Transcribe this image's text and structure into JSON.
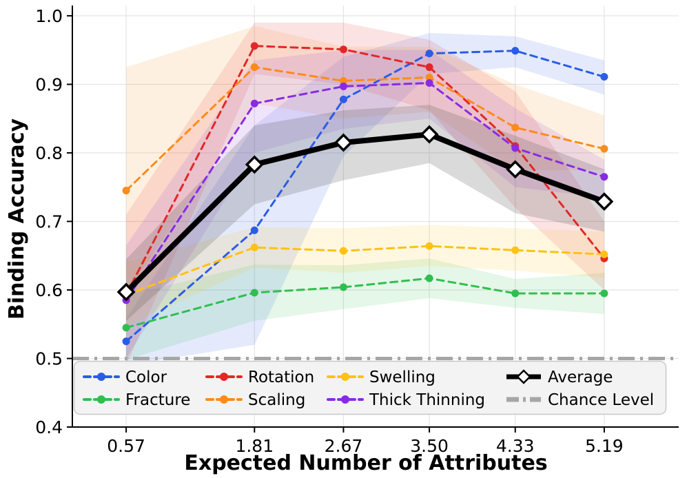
{
  "figure": {
    "background": "#ffffff"
  },
  "chart_data": {
    "type": "line",
    "title": "",
    "xlabel": "Expected Number of Attributes",
    "ylabel": "Binding Accuracy",
    "x": [
      0.57,
      1.81,
      2.67,
      3.5,
      4.33,
      5.19
    ],
    "x_tick_labels": [
      "0.57",
      "1.81",
      "2.67",
      "3.50",
      "4.33",
      "5.19"
    ],
    "y_ticks": [
      0.4,
      0.5,
      0.6,
      0.7,
      0.8,
      0.9,
      1.0
    ],
    "y_tick_labels": [
      "0.4",
      "0.5",
      "0.6",
      "0.7",
      "0.8",
      "0.9",
      "1.0"
    ],
    "xlim": [
      0.05,
      5.91
    ],
    "ylim": [
      0.4,
      1.015
    ],
    "grid": true,
    "colors": {
      "grid": "#e3e3e3",
      "spine": "#000000",
      "legend_bg": "#f2f2f2",
      "legend_border": "#c8c8c8"
    },
    "series": [
      {
        "name": "Color",
        "color": "#2b5ce6",
        "style": "dashed",
        "marker": "circle",
        "values": [
          0.525,
          0.687,
          0.878,
          0.945,
          0.949,
          0.911
        ],
        "band_lo": [
          0.49,
          0.52,
          0.795,
          0.915,
          0.925,
          0.885
        ],
        "band_hi": [
          0.558,
          0.84,
          0.94,
          0.975,
          0.97,
          0.935
        ]
      },
      {
        "name": "Fracture",
        "color": "#2fbf4f",
        "style": "dashed",
        "marker": "circle",
        "values": [
          0.545,
          0.596,
          0.604,
          0.617,
          0.595,
          0.595
        ],
        "band_lo": [
          0.498,
          0.555,
          0.572,
          0.588,
          0.574,
          0.565
        ],
        "band_hi": [
          0.592,
          0.637,
          0.636,
          0.646,
          0.616,
          0.625
        ]
      },
      {
        "name": "Rotation",
        "color": "#e32727",
        "style": "dashed",
        "marker": "circle",
        "values": [
          0.593,
          0.956,
          0.951,
          0.925,
          0.81,
          0.646
        ],
        "band_lo": [
          0.49,
          0.915,
          0.9,
          0.862,
          0.72,
          0.6
        ],
        "band_hi": [
          0.71,
          0.99,
          0.99,
          0.965,
          0.89,
          0.7
        ]
      },
      {
        "name": "Scaling",
        "color": "#fb8b1b",
        "style": "dashed",
        "marker": "circle",
        "values": [
          0.745,
          0.925,
          0.905,
          0.91,
          0.837,
          0.806
        ],
        "band_lo": [
          0.595,
          0.872,
          0.85,
          0.86,
          0.775,
          0.775
        ],
        "band_hi": [
          0.925,
          0.985,
          0.955,
          0.955,
          0.9,
          0.855
        ]
      },
      {
        "name": "Swelling",
        "color": "#fdc213",
        "style": "dashed",
        "marker": "circle",
        "values": [
          0.593,
          0.662,
          0.657,
          0.664,
          0.658,
          0.652
        ],
        "band_lo": [
          0.548,
          0.633,
          0.625,
          0.635,
          0.628,
          0.618
        ],
        "band_hi": [
          0.64,
          0.692,
          0.69,
          0.695,
          0.69,
          0.685
        ]
      },
      {
        "name": "Thick Thinning",
        "color": "#8a2be2",
        "style": "dashed",
        "marker": "circle",
        "values": [
          0.585,
          0.872,
          0.897,
          0.902,
          0.807,
          0.765
        ],
        "band_lo": [
          0.5,
          0.8,
          0.835,
          0.85,
          0.75,
          0.735
        ],
        "band_hi": [
          0.665,
          0.935,
          0.95,
          0.95,
          0.865,
          0.79
        ]
      },
      {
        "name": "Average",
        "color": "#000000",
        "style": "solid",
        "marker": "diamond",
        "band_color": "#555555",
        "values": [
          0.597,
          0.783,
          0.815,
          0.827,
          0.776,
          0.729
        ],
        "band_lo": [
          0.555,
          0.725,
          0.76,
          0.785,
          0.712,
          0.685
        ],
        "band_hi": [
          0.645,
          0.84,
          0.862,
          0.87,
          0.825,
          0.776
        ]
      },
      {
        "name": "Chance Level",
        "color": "#a6a6a6",
        "style": "dashdot",
        "marker": "none",
        "constant": 0.5
      }
    ],
    "legend_position": "lower center inside axes",
    "legend_rows": [
      [
        "Color",
        "Rotation",
        "Swelling",
        "Average"
      ],
      [
        "Fracture",
        "Scaling",
        "Thick Thinning",
        "Chance Level"
      ]
    ]
  }
}
